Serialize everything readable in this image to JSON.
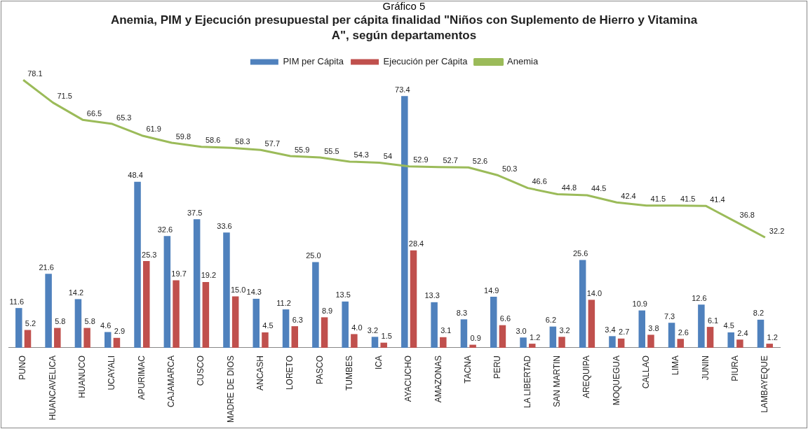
{
  "chart_data": {
    "type": "bar",
    "title": "Anemia, PIM y Ejecución presupuestal  per cápita finalidad \"Niños con Suplemento de Hierro y Vitamina A\", según departamentos",
    "annotations": [
      "Gráfico 5"
    ],
    "categories": [
      "PUNO",
      "HUANCAVELICA",
      "HUANUCO",
      "UCAYALI",
      "APURIMAC",
      "CAJAMARCA",
      "CUSCO",
      "MADRE DE DIOS",
      "ANCASH",
      "LORETO",
      "PASCO",
      "TUMBES",
      "ICA",
      "AYACUCHO",
      "AMAZONAS",
      "TACNA",
      "PERU",
      "LA LIBERTAD",
      "SAN MARTIN",
      "AREQUIPA",
      "MOQUEGUA",
      "CALLAO",
      "LIMA",
      "JUNIN",
      "PIURA",
      "LAMBAYEQUE"
    ],
    "series": [
      {
        "name": "PIM per Cápita",
        "color": "#4f81bd",
        "values": [
          11.6,
          21.6,
          14.2,
          4.6,
          48.4,
          32.6,
          37.5,
          33.6,
          14.3,
          11.2,
          25.0,
          13.5,
          3.2,
          73.4,
          13.3,
          8.3,
          14.9,
          3.0,
          6.2,
          25.6,
          3.4,
          10.9,
          7.3,
          12.6,
          4.5,
          8.2
        ],
        "value_labels": [
          "11.6",
          "21.6",
          "14.2",
          "4.6",
          "48.4",
          "32.6",
          "37.5",
          "33.6",
          "14.3",
          "11.2",
          "25.0",
          "13.5",
          "3.2",
          "73.4",
          "13.3",
          "8.3",
          "14.9",
          "3.0",
          "6.2",
          "25.6",
          "3.4",
          "10.9",
          "7.3",
          "12.6",
          "4.5",
          "8.2"
        ]
      },
      {
        "name": "Ejecución per Cápita",
        "color": "#c0504d",
        "values": [
          5.2,
          5.8,
          5.8,
          2.9,
          25.3,
          19.7,
          19.2,
          15.0,
          4.5,
          6.3,
          8.9,
          4.0,
          1.5,
          28.4,
          3.1,
          0.9,
          6.6,
          1.2,
          3.2,
          14.0,
          2.7,
          3.8,
          2.6,
          6.1,
          2.4,
          1.2
        ],
        "value_labels": [
          "5.2",
          "5.8",
          "5.8",
          "2.9",
          "25.3",
          "19.7",
          "19.2",
          "15.0",
          "4.5",
          "6.3",
          "8.9",
          "4.0",
          "1.5",
          "28.4",
          "3.1",
          "0.9",
          "6.6",
          "1.2",
          "3.2",
          "14.0",
          "2.7",
          "3.8",
          "2.6",
          "6.1",
          "2.4",
          "1.2"
        ]
      },
      {
        "name": "Anemia",
        "type": "line",
        "color": "#9bbb59",
        "values": [
          78.1,
          71.5,
          66.5,
          65.3,
          61.9,
          59.8,
          58.6,
          58.3,
          57.7,
          55.9,
          55.5,
          54.3,
          54,
          52.9,
          52.7,
          52.6,
          50.3,
          46.6,
          44.8,
          44.5,
          42.4,
          41.5,
          41.5,
          41.4,
          36.8,
          32.2
        ],
        "value_labels": [
          "78.1",
          "71.5",
          "66.5",
          "65.3",
          "61.9",
          "59.8",
          "58.6",
          "58.3",
          "57.7",
          "55.9",
          "55.5",
          "54.3",
          "54",
          "52.9",
          "52.7",
          "52.6",
          "50.3",
          "46.6",
          "44.8",
          "44.5",
          "42.4",
          "41.5",
          "41.5",
          "41.4",
          "36.8",
          "32.2"
        ]
      }
    ],
    "legend": "top",
    "grid": false,
    "marker": "none",
    "line_style": "solid"
  }
}
